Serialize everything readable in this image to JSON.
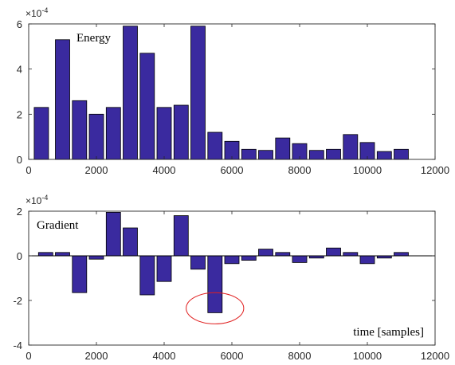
{
  "chart_data": [
    {
      "type": "bar",
      "annotation": "Energy",
      "exponent_label": "×10",
      "exponent_power": "-4",
      "xlim": [
        0,
        12000
      ],
      "ylim": [
        0,
        6
      ],
      "x_ticks": [
        0,
        2000,
        4000,
        6000,
        8000,
        10000,
        12000
      ],
      "y_ticks": [
        0,
        2,
        4,
        6
      ],
      "x": [
        375,
        1000,
        1500,
        2000,
        2500,
        3000,
        3500,
        4000,
        4500,
        5000,
        5500,
        6000,
        6500,
        7000,
        7500,
        8000,
        8500,
        9000,
        9500,
        10000,
        10500,
        11000
      ],
      "values": [
        2.3,
        5.3,
        2.6,
        2.0,
        2.3,
        5.9,
        4.7,
        2.3,
        2.4,
        5.9,
        1.2,
        0.8,
        0.45,
        0.4,
        0.95,
        0.7,
        0.4,
        0.45,
        1.1,
        0.75,
        0.35,
        0.45
      ],
      "bar_color": "#3a2a9f"
    },
    {
      "type": "bar",
      "annotation": "Gradient",
      "xlabel": "time [samples]",
      "exponent_label": "×10",
      "exponent_power": "-4",
      "xlim": [
        0,
        12000
      ],
      "ylim": [
        -4,
        2
      ],
      "x_ticks": [
        0,
        2000,
        4000,
        6000,
        8000,
        10000,
        12000
      ],
      "y_ticks": [
        -4,
        -2,
        0,
        2
      ],
      "x": [
        500,
        1000,
        1500,
        2000,
        2500,
        3000,
        3500,
        4000,
        4500,
        5000,
        5500,
        6000,
        6500,
        7000,
        7500,
        8000,
        8500,
        9000,
        9500,
        10000,
        10500,
        11000
      ],
      "values": [
        0.15,
        0.15,
        -1.65,
        -0.15,
        1.95,
        1.25,
        -1.75,
        -1.15,
        1.8,
        -0.6,
        -2.55,
        -0.35,
        -0.2,
        0.3,
        0.15,
        -0.3,
        -0.1,
        0.35,
        0.15,
        -0.35,
        -0.1,
        0.15
      ],
      "bar_color": "#3a2a9f",
      "highlight": {
        "x": 5500,
        "y": -2.35,
        "rx": 850,
        "ry": 0.7,
        "color": "#e02020"
      }
    }
  ]
}
